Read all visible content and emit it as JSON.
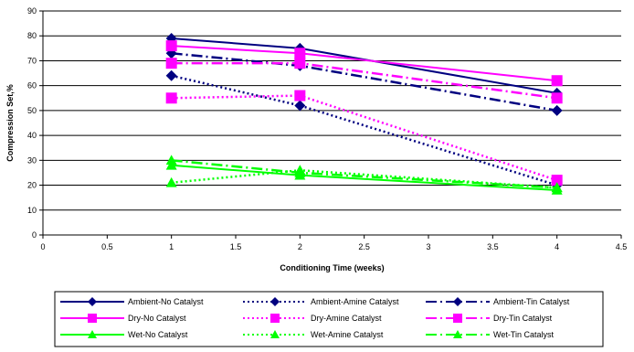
{
  "chart_data": {
    "type": "line",
    "title": "",
    "xlabel": "Conditioning Time (weeks)",
    "ylabel": "Compression Set,%",
    "xlim": [
      0,
      4.5
    ],
    "ylim": [
      0,
      90
    ],
    "xticks": [
      0,
      0.5,
      1,
      1.5,
      2,
      2.5,
      3,
      3.5,
      4,
      4.5
    ],
    "yticks": [
      0,
      10,
      20,
      30,
      40,
      50,
      60,
      70,
      80,
      90
    ],
    "xtick_labels": [
      "0",
      "0.5",
      "1",
      "1.5",
      "2",
      "2.5",
      "3",
      "3.5",
      "4",
      "4.5"
    ],
    "ytick_labels": [
      "0",
      "10",
      "20",
      "30",
      "40",
      "50",
      "60",
      "70",
      "80",
      "90"
    ],
    "grid": "horizontal",
    "legend_position": "bottom",
    "x": [
      1,
      2,
      4
    ],
    "series": [
      {
        "name": "Ambient-No Catalyst",
        "values": [
          79,
          75,
          57
        ],
        "color": "#000080",
        "dash": "solid",
        "marker": "diamond"
      },
      {
        "name": "Ambient-Amine Catalyst",
        "values": [
          64,
          52,
          20
        ],
        "color": "#000080",
        "dash": "dot",
        "marker": "diamond"
      },
      {
        "name": "Ambient-Tin Catalyst",
        "values": [
          73,
          68,
          50
        ],
        "color": "#000080",
        "dash": "dashdot",
        "marker": "diamond"
      },
      {
        "name": "Dry-No Catalyst",
        "values": [
          76,
          73,
          62
        ],
        "color": "#FF00FF",
        "dash": "solid",
        "marker": "square"
      },
      {
        "name": "Dry-Amine Catalyst",
        "values": [
          55,
          56,
          22
        ],
        "color": "#FF00FF",
        "dash": "dot",
        "marker": "square"
      },
      {
        "name": "Dry-Tin Catalyst",
        "values": [
          69,
          69,
          55
        ],
        "color": "#FF00FF",
        "dash": "dashdot",
        "marker": "square"
      },
      {
        "name": "Wet-No Catalyst",
        "values": [
          28,
          24,
          18
        ],
        "color": "#00FF00",
        "dash": "solid",
        "marker": "triangle"
      },
      {
        "name": "Wet-Amine Catalyst",
        "values": [
          21,
          26,
          19
        ],
        "color": "#00FF00",
        "dash": "dot",
        "marker": "triangle"
      },
      {
        "name": "Wet-Tin Catalyst",
        "values": [
          30,
          25,
          19
        ],
        "color": "#00FF00",
        "dash": "dashdot",
        "marker": "triangle"
      }
    ]
  }
}
